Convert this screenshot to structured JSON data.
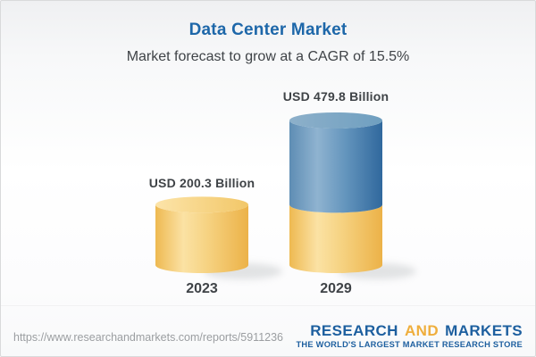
{
  "header": {
    "title": "Data Center Market",
    "subtitle": "Market forecast to grow at a CAGR of 15.5%"
  },
  "chart_data": {
    "type": "bar",
    "subtype": "3d-cylinder-stacked",
    "title": "Data Center Market",
    "subtitle": "Market forecast to grow at a CAGR of 15.5%",
    "unit": "USD Billion",
    "cagr_percent": 15.5,
    "categories": [
      "2023",
      "2029"
    ],
    "values": [
      200.3,
      479.8
    ],
    "bar_labels": [
      "USD 200.3 Billion",
      "USD 479.8 Billion"
    ],
    "stacks": [
      [
        {
          "color": "gold",
          "value": 200.3
        }
      ],
      [
        {
          "color": "gold",
          "value": 200.3
        },
        {
          "color": "blue",
          "value": 279.5
        }
      ]
    ],
    "ylim": [
      0,
      480
    ],
    "grid": false,
    "legend": "none"
  },
  "colors": {
    "title_blue": "#1d67a9",
    "text_dark": "#3f4347",
    "gold_edge": "#edb84e",
    "gold_highlight": "#fbe2a4",
    "gold_top": "#f7d689",
    "blue_edge_left": "#5e8db4",
    "blue_highlight": "#8fb3d0",
    "blue_edge_right": "#30689d",
    "blue_top": "#7fa7c4",
    "logo_blue": "#1d5f9f",
    "logo_gold": "#efae3c",
    "url_gray": "#9b9ea1"
  },
  "footer": {
    "report_url": "https://www.researchandmarkets.com/reports/5911236",
    "logo": {
      "word1": "RESEARCH",
      "word2": "AND",
      "word3": "MARKETS",
      "tagline": "THE WORLD'S LARGEST MARKET RESEARCH STORE"
    }
  }
}
